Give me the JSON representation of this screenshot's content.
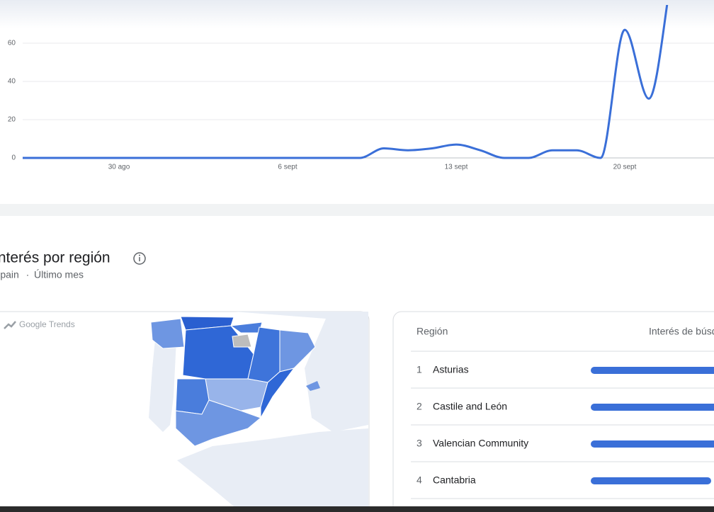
{
  "chart_data": {
    "type": "line",
    "categories": [
      null,
      null,
      null,
      null,
      "30 ago",
      null,
      null,
      null,
      null,
      null,
      null,
      "6 sept",
      null,
      null,
      null,
      null,
      null,
      null,
      "13 sept",
      null,
      null,
      null,
      null,
      null,
      null,
      "20 sept",
      null,
      null
    ],
    "values": [
      0,
      0,
      0,
      0,
      0,
      0,
      0,
      0,
      0,
      0,
      0,
      0,
      0,
      0,
      0,
      5,
      4,
      5,
      7,
      4,
      0,
      0,
      4,
      4,
      0,
      67,
      31,
      100
    ],
    "color": "#3a6fd8",
    "ylim": [
      0,
      80
    ],
    "yticks": [
      0,
      20,
      40,
      60
    ],
    "grid": true
  },
  "region_section": {
    "title": "Interés por región",
    "location": "Spain",
    "separator": "·",
    "period": "Último mes"
  },
  "map": {
    "watermark": "Google Trends"
  },
  "table": {
    "headers": [
      "Región",
      "Interés de búsqueda"
    ],
    "rows": [
      {
        "rank": 1,
        "region": "Asturias",
        "interest": 100
      },
      {
        "rank": 2,
        "region": "Castile and León",
        "interest": 98
      },
      {
        "rank": 3,
        "region": "Valencian Community",
        "interest": 96
      },
      {
        "rank": 4,
        "region": "Cantabria",
        "interest": 85
      }
    ]
  }
}
